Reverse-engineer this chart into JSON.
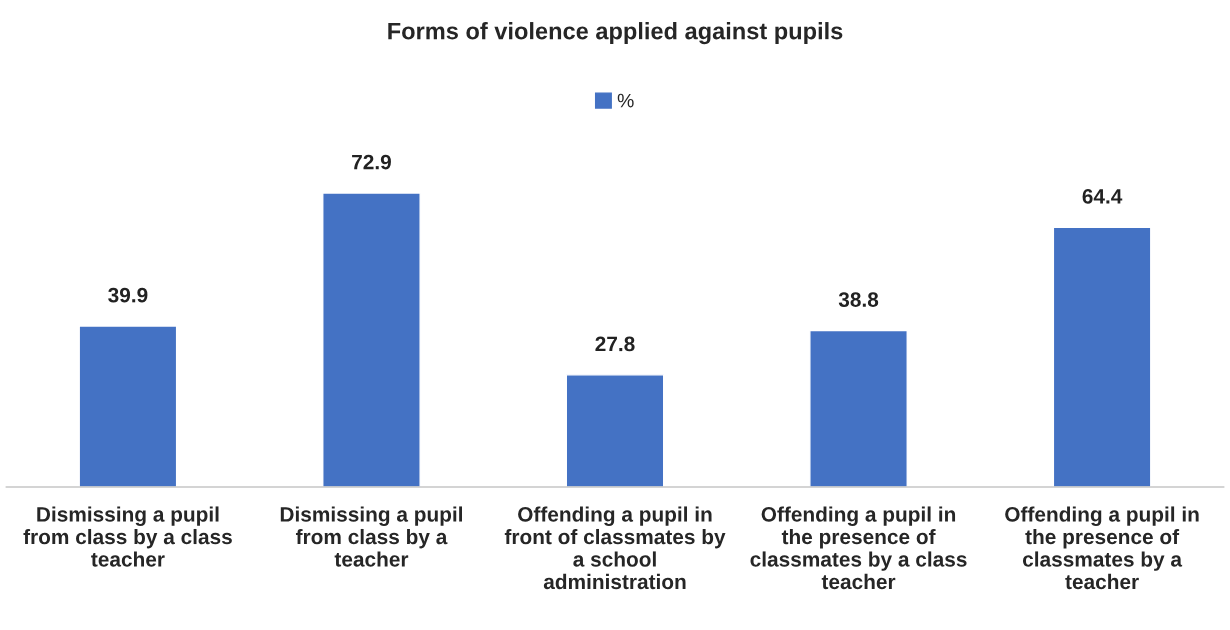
{
  "chart_data": {
    "type": "bar",
    "title": "Forms of violence applied against pupils",
    "categories": [
      "Dismissing a pupil from class by a class teacher",
      "Dismissing a pupil from class by a teacher",
      "Offending a pupil in front of classmates by a school administration",
      "Offending a pupil in the presence of classmates by a class teacher",
      "Offending a pupil in the presence of classmates by a teacher"
    ],
    "series": [
      {
        "name": "%",
        "color": "#4472c4",
        "values": [
          39.9,
          72.9,
          27.8,
          38.8,
          64.4
        ]
      }
    ],
    "data_labels": true,
    "legend": "top",
    "grid": false
  }
}
